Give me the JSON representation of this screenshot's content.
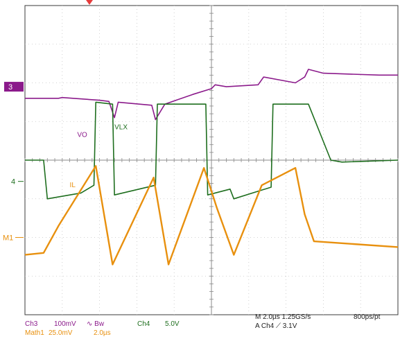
{
  "chart_data": {
    "type": "line",
    "title": "",
    "xlabel": "",
    "ylabel": "",
    "x_unit": "µs",
    "xlim": [
      -10,
      10
    ],
    "ylim": [
      -4,
      4
    ],
    "grid": true,
    "divisions": {
      "x": 10,
      "y": 8
    },
    "series": [
      {
        "name": "VO",
        "channel": "Ch3",
        "color": "#8b1a8b",
        "marker_label": "3",
        "marker_level": 1.9,
        "x": [
          -10,
          -8.2,
          -8.0,
          -6.0,
          -5.5,
          -5.2,
          -5.0,
          -3.2,
          -3.0,
          -2.5,
          -1.0,
          0.0,
          0.2,
          0.8,
          2.5,
          2.8,
          4.5,
          5.0,
          5.2,
          6.0,
          9.0,
          10
        ],
        "values": [
          1.6,
          1.6,
          1.62,
          1.55,
          1.52,
          1.1,
          1.5,
          1.42,
          1.05,
          1.45,
          1.7,
          1.85,
          1.95,
          1.9,
          1.95,
          2.15,
          2.0,
          2.15,
          2.35,
          2.25,
          2.2,
          2.2
        ]
      },
      {
        "name": "VLX",
        "channel": "Ch4",
        "color": "#1e6e1e",
        "marker_label": "4",
        "marker_level": -0.55,
        "x": [
          -10,
          -9.0,
          -8.8,
          -7.0,
          -6.3,
          -6.2,
          -5.3,
          -5.2,
          -3.0,
          -2.9,
          -1.0,
          -0.3,
          -0.2,
          1.0,
          1.2,
          3.2,
          3.3,
          5.2,
          6.4,
          7.0,
          10
        ],
        "values": [
          0.0,
          0.0,
          -1.0,
          -0.85,
          -0.65,
          1.5,
          1.45,
          -0.9,
          -0.65,
          1.45,
          1.45,
          1.45,
          -0.9,
          -0.75,
          -1.0,
          -0.7,
          1.45,
          1.45,
          0.0,
          -0.05,
          0.0
        ]
      },
      {
        "name": "IL",
        "channel": "Math1",
        "color": "#e8900e",
        "marker_label": "M1",
        "marker_level": -2.0,
        "x": [
          -10,
          -9.0,
          -8.2,
          -6.2,
          -5.3,
          -3.1,
          -2.3,
          -0.4,
          0.3,
          1.2,
          2.7,
          4.5,
          5.0,
          5.5,
          10
        ],
        "values": [
          -2.45,
          -2.4,
          -1.7,
          -0.15,
          -2.7,
          -0.45,
          -2.7,
          -0.2,
          -1.25,
          -2.45,
          -0.65,
          -0.2,
          -1.4,
          -2.1,
          -2.25
        ]
      }
    ],
    "channels": [
      {
        "id": "Ch3",
        "scale": "100mV",
        "color": "#8b1a8b"
      },
      {
        "id": "Ch4",
        "scale": "5.0V",
        "color": "#1e6e1e"
      },
      {
        "id": "Math1",
        "scale": "25.0mV",
        "timebase": "2.0µs",
        "color": "#e8900e"
      }
    ],
    "bandwidth_symbols": "∿ Bw",
    "acquisition": {
      "timebase": "M 2.0µs 1.25GS/s",
      "record": "800ps/pt",
      "trigger": "A  Ch4  ⟋  3.1V"
    }
  }
}
